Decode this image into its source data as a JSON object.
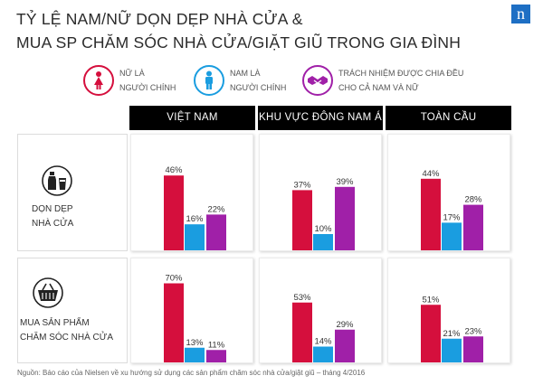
{
  "title_line1": "TỶ LỆ NAM/NỮ DỌN DẸP NHÀ CỬA &",
  "title_line2": "MUA SP CHĂM SÓC NHÀ CỬA/GIẶT GIŨ TRONG GIA ĐÌNH",
  "brand_letter": "n",
  "legend": [
    {
      "line1": "NỮ LÀ",
      "line2": "NGƯỜI CHÍNH",
      "color": "#d50f3d",
      "icon": "female-icon"
    },
    {
      "line1": "NAM LÀ",
      "line2": "NGƯỜI CHÍNH",
      "color": "#1a9de0",
      "icon": "male-icon"
    },
    {
      "line1": "TRÁCH NHIỆM ĐƯỢC CHIA ĐỀU",
      "line2": "CHO CẢ NAM VÀ NỮ",
      "color": "#a020a8",
      "icon": "handshake-icon"
    }
  ],
  "regions": [
    "VIỆT NAM",
    "KHU VỰC ĐÔNG NAM Á",
    "TOÀN CẦU"
  ],
  "rows": [
    {
      "line1": "DỌN DẸP",
      "line2": "NHÀ CỬA",
      "icon": "cleaning-bottles-icon"
    },
    {
      "line1": "MUA SẢN PHẨM",
      "line2": "CHĂM SÓC NHÀ CỬA",
      "icon": "shopping-basket-icon"
    }
  ],
  "chart_data": {
    "type": "bar",
    "unit": "%",
    "categories": [
      "NỮ LÀ NGƯỜI CHÍNH",
      "NAM LÀ NGƯỜI CHÍNH",
      "TRÁCH NHIỆM ĐƯỢC CHIA ĐỀU CHO CẢ NAM VÀ NỮ"
    ],
    "colors": [
      "#d50f3d",
      "#1a9de0",
      "#a020a8"
    ],
    "ylim": [
      0,
      100
    ],
    "panels": [
      {
        "row": "DỌN DẸP NHÀ CỬA",
        "region": "VIỆT NAM",
        "values": [
          46,
          16,
          22
        ],
        "labels": [
          "46%",
          "16%",
          "22%"
        ]
      },
      {
        "row": "DỌN DẸP NHÀ CỬA",
        "region": "KHU VỰC ĐÔNG NAM Á",
        "values": [
          37,
          10,
          39
        ],
        "labels": [
          "37%",
          "10%",
          "39%"
        ]
      },
      {
        "row": "DỌN DẸP NHÀ CỬA",
        "region": "TOÀN CẦU",
        "values": [
          44,
          17,
          28
        ],
        "labels": [
          "44%",
          "17%",
          "28%"
        ]
      },
      {
        "row": "MUA SẢN PHẨM CHĂM SÓC NHÀ CỬA",
        "region": "VIỆT NAM",
        "values": [
          70,
          13,
          11
        ],
        "labels": [
          "70%",
          "13%",
          "11%"
        ]
      },
      {
        "row": "MUA SẢN PHẨM CHĂM SÓC NHÀ CỬA",
        "region": "KHU VỰC ĐÔNG NAM Á",
        "values": [
          53,
          14,
          29
        ],
        "labels": [
          "53%",
          "14%",
          "29%"
        ]
      },
      {
        "row": "MUA SẢN PHẨM CHĂM SÓC NHÀ CỬA",
        "region": "TOÀN CẦU",
        "values": [
          51,
          21,
          23
        ],
        "labels": [
          "51%",
          "21%",
          "23%"
        ]
      }
    ]
  },
  "source": "Nguồn: Báo cáo của Nielsen về xu hướng sử dụng các sản phẩm chăm sóc nhà cửa/giặt giũ – tháng 4/2016"
}
